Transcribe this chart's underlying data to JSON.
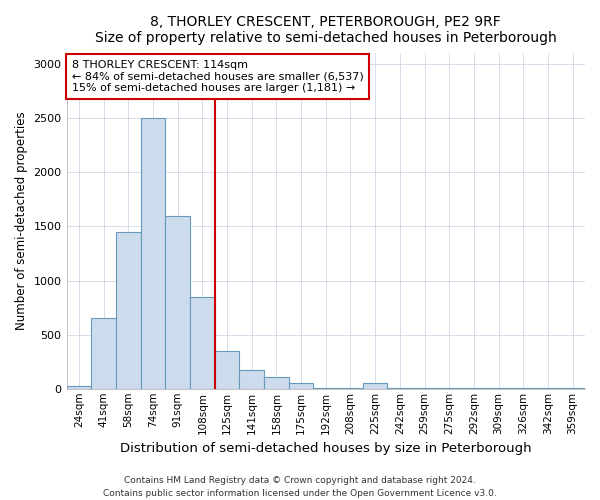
{
  "title": "8, THORLEY CRESCENT, PETERBOROUGH, PE2 9RF",
  "subtitle": "Size of property relative to semi-detached houses in Peterborough",
  "xlabel": "Distribution of semi-detached houses by size in Peterborough",
  "ylabel": "Number of semi-detached properties",
  "categories": [
    "24sqm",
    "41sqm",
    "58sqm",
    "74sqm",
    "91sqm",
    "108sqm",
    "125sqm",
    "141sqm",
    "158sqm",
    "175sqm",
    "192sqm",
    "208sqm",
    "225sqm",
    "242sqm",
    "259sqm",
    "275sqm",
    "292sqm",
    "309sqm",
    "326sqm",
    "342sqm",
    "359sqm"
  ],
  "values": [
    30,
    650,
    1450,
    2500,
    1600,
    850,
    350,
    170,
    110,
    50,
    5,
    5,
    50,
    5,
    5,
    5,
    5,
    3,
    3,
    3,
    3
  ],
  "bar_color": "#ccdcec",
  "bar_edge_color": "#6699bb",
  "red_line_color": "#cc0000",
  "annotation_title": "8 THORLEY CRESCENT: 114sqm",
  "annotation_line1": "← 84% of semi-detached houses are smaller (6,537)",
  "annotation_line2": "15% of semi-detached houses are larger (1,181) →",
  "annotation_box_color": "#ffffff",
  "annotation_box_edge_color": "#cc0000",
  "footer_line1": "Contains HM Land Registry data © Crown copyright and database right 2024.",
  "footer_line2": "Contains public sector information licensed under the Open Government Licence v3.0.",
  "ylim": [
    0,
    3100
  ],
  "yticks": [
    0,
    500,
    1000,
    1500,
    2000,
    2500,
    3000
  ],
  "red_line_bar_index": 6,
  "figsize": [
    6.0,
    5.0
  ],
  "dpi": 100
}
